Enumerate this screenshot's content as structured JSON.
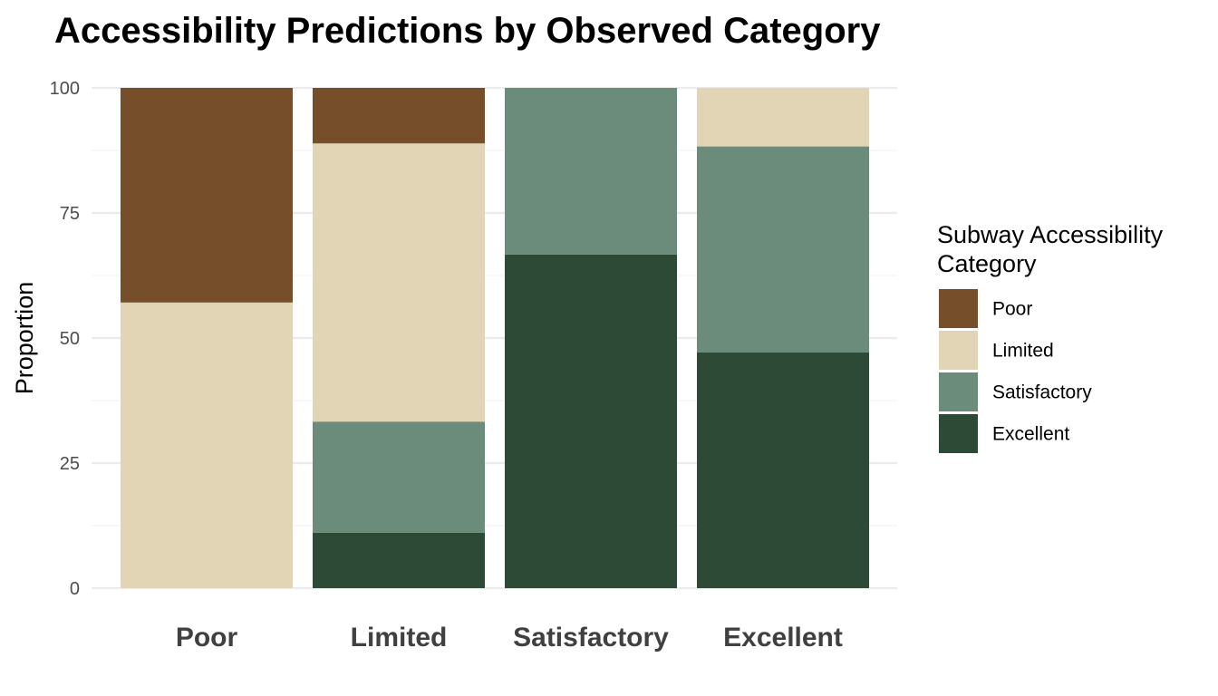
{
  "chart_data": {
    "type": "bar",
    "stacked": true,
    "title": "Accessibility Predictions by Observed Category",
    "xlabel": "",
    "ylabel": "Proportion",
    "ylim": [
      0,
      100
    ],
    "yticks": [
      0,
      25,
      50,
      75,
      100
    ],
    "grid": true,
    "legend": {
      "title_lines": [
        "Subway Accessibility",
        "Category"
      ],
      "position": "right"
    },
    "categories": [
      "Poor",
      "Limited",
      "Satisfactory",
      "Excellent"
    ],
    "series": [
      {
        "name": "Excellent",
        "color": "#2d4a37",
        "values": [
          0,
          11.1,
          66.7,
          47.1
        ]
      },
      {
        "name": "Satisfactory",
        "color": "#6b8c7a",
        "values": [
          0,
          22.2,
          33.3,
          41.2
        ]
      },
      {
        "name": "Limited",
        "color": "#e2d5b5",
        "values": [
          57.1,
          55.6,
          0,
          11.7
        ]
      },
      {
        "name": "Poor",
        "color": "#764f2a",
        "values": [
          42.9,
          11.1,
          0,
          0
        ]
      }
    ],
    "legend_order": [
      "Poor",
      "Limited",
      "Satisfactory",
      "Excellent"
    ]
  }
}
